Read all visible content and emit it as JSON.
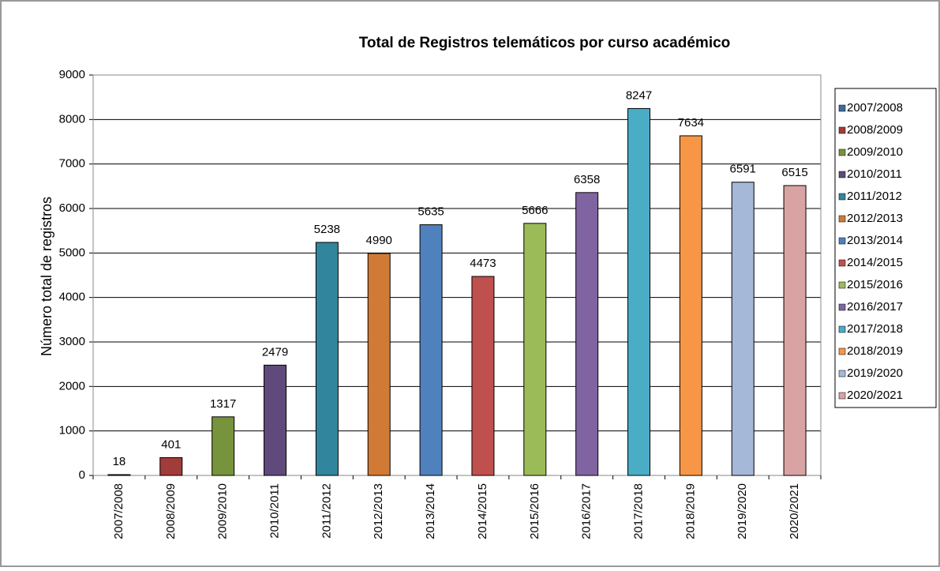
{
  "chart_data": {
    "type": "bar",
    "title": "Total de Registros telemáticos por curso académico",
    "y_label": "Número total de registros",
    "categories": [
      "2007/2008",
      "2008/2009",
      "2009/2010",
      "2010/2011",
      "2011/2012",
      "2012/2013",
      "2013/2014",
      "2014/2015",
      "2015/2016",
      "2016/2017",
      "2017/2018",
      "2018/2019",
      "2019/2020",
      "2020/2021"
    ],
    "values": [
      18,
      401,
      1317,
      2479,
      5238,
      4990,
      5635,
      4473,
      5666,
      6358,
      8247,
      7634,
      6591,
      6515
    ],
    "colors": [
      "#3d6aa0",
      "#a03c3a",
      "#77933c",
      "#604a7b",
      "#31859c",
      "#d07a35",
      "#4f81bd",
      "#c0504d",
      "#9bbb59",
      "#8064a2",
      "#4bacc6",
      "#f79646",
      "#a6b8d8",
      "#d9a3a3"
    ],
    "ylim": [
      0,
      9000
    ],
    "yticks": [
      0,
      1000,
      2000,
      3000,
      4000,
      5000,
      6000,
      7000,
      8000,
      9000
    ],
    "grid": true,
    "legend": "right"
  }
}
